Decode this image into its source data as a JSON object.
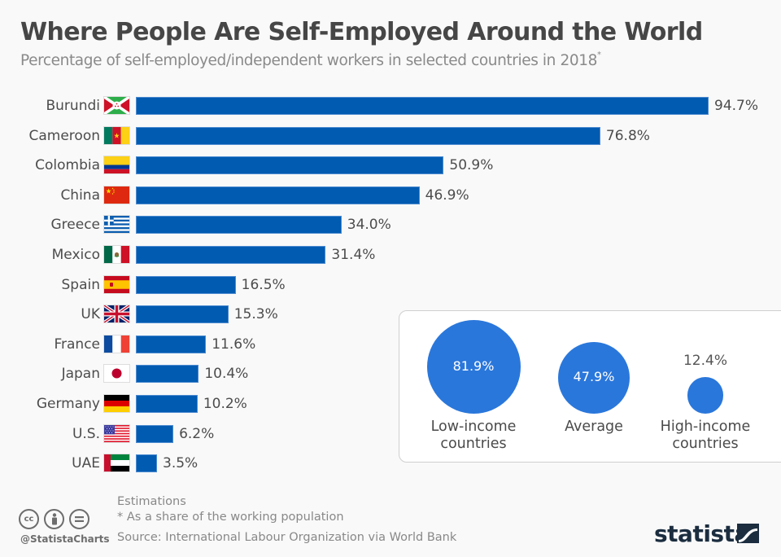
{
  "chart_data": {
    "type": "bar",
    "orientation": "horizontal",
    "title": "Where People Are Self-Employed Around the World",
    "subtitle": "Percentage of self-employed/independent workers in selected countries in 2018",
    "subtitle_marker": "*",
    "categories": [
      "Burundi",
      "Cameroon",
      "Colombia",
      "China",
      "Greece",
      "Mexico",
      "Spain",
      "UK",
      "France",
      "Japan",
      "Germany",
      "U.S.",
      "UAE"
    ],
    "values": [
      94.7,
      76.8,
      50.9,
      46.9,
      34.0,
      31.4,
      16.5,
      15.3,
      11.6,
      10.4,
      10.2,
      6.2,
      3.5
    ],
    "value_labels": [
      "94.7%",
      "76.8%",
      "50.9%",
      "46.9%",
      "34.0%",
      "31.4%",
      "16.5%",
      "15.3%",
      "11.6%",
      "10.4%",
      "10.2%",
      "6.2%",
      "3.5%"
    ],
    "flags": [
      "burundi-flag",
      "cameroon-flag",
      "colombia-flag",
      "china-flag",
      "greece-flag",
      "mexico-flag",
      "spain-flag",
      "uk-flag",
      "france-flag",
      "japan-flag",
      "germany-flag",
      "us-flag",
      "uae-flag"
    ],
    "xlim": [
      0,
      100
    ],
    "unit": "%",
    "grid": false,
    "bar_color": "#005bb1",
    "inset": {
      "type": "bubble",
      "items": [
        {
          "label": "Low-income\ncountries",
          "value": 81.9,
          "value_label": "81.9%"
        },
        {
          "label": "Average",
          "value": 47.9,
          "value_label": "47.9%"
        },
        {
          "label": "High-income\ncountries",
          "value": 12.4,
          "value_label": "12.4%"
        }
      ],
      "bubble_color": "#2a77db"
    }
  },
  "footer": {
    "notes": [
      "Estimations",
      "* As a share of the working population"
    ],
    "source": "Source: International Labour Organization via World Bank",
    "handle": "@StatistaCharts",
    "brand": "statista",
    "license_icons": [
      "cc-icon",
      "attribution-icon",
      "no-derivatives-icon"
    ]
  }
}
